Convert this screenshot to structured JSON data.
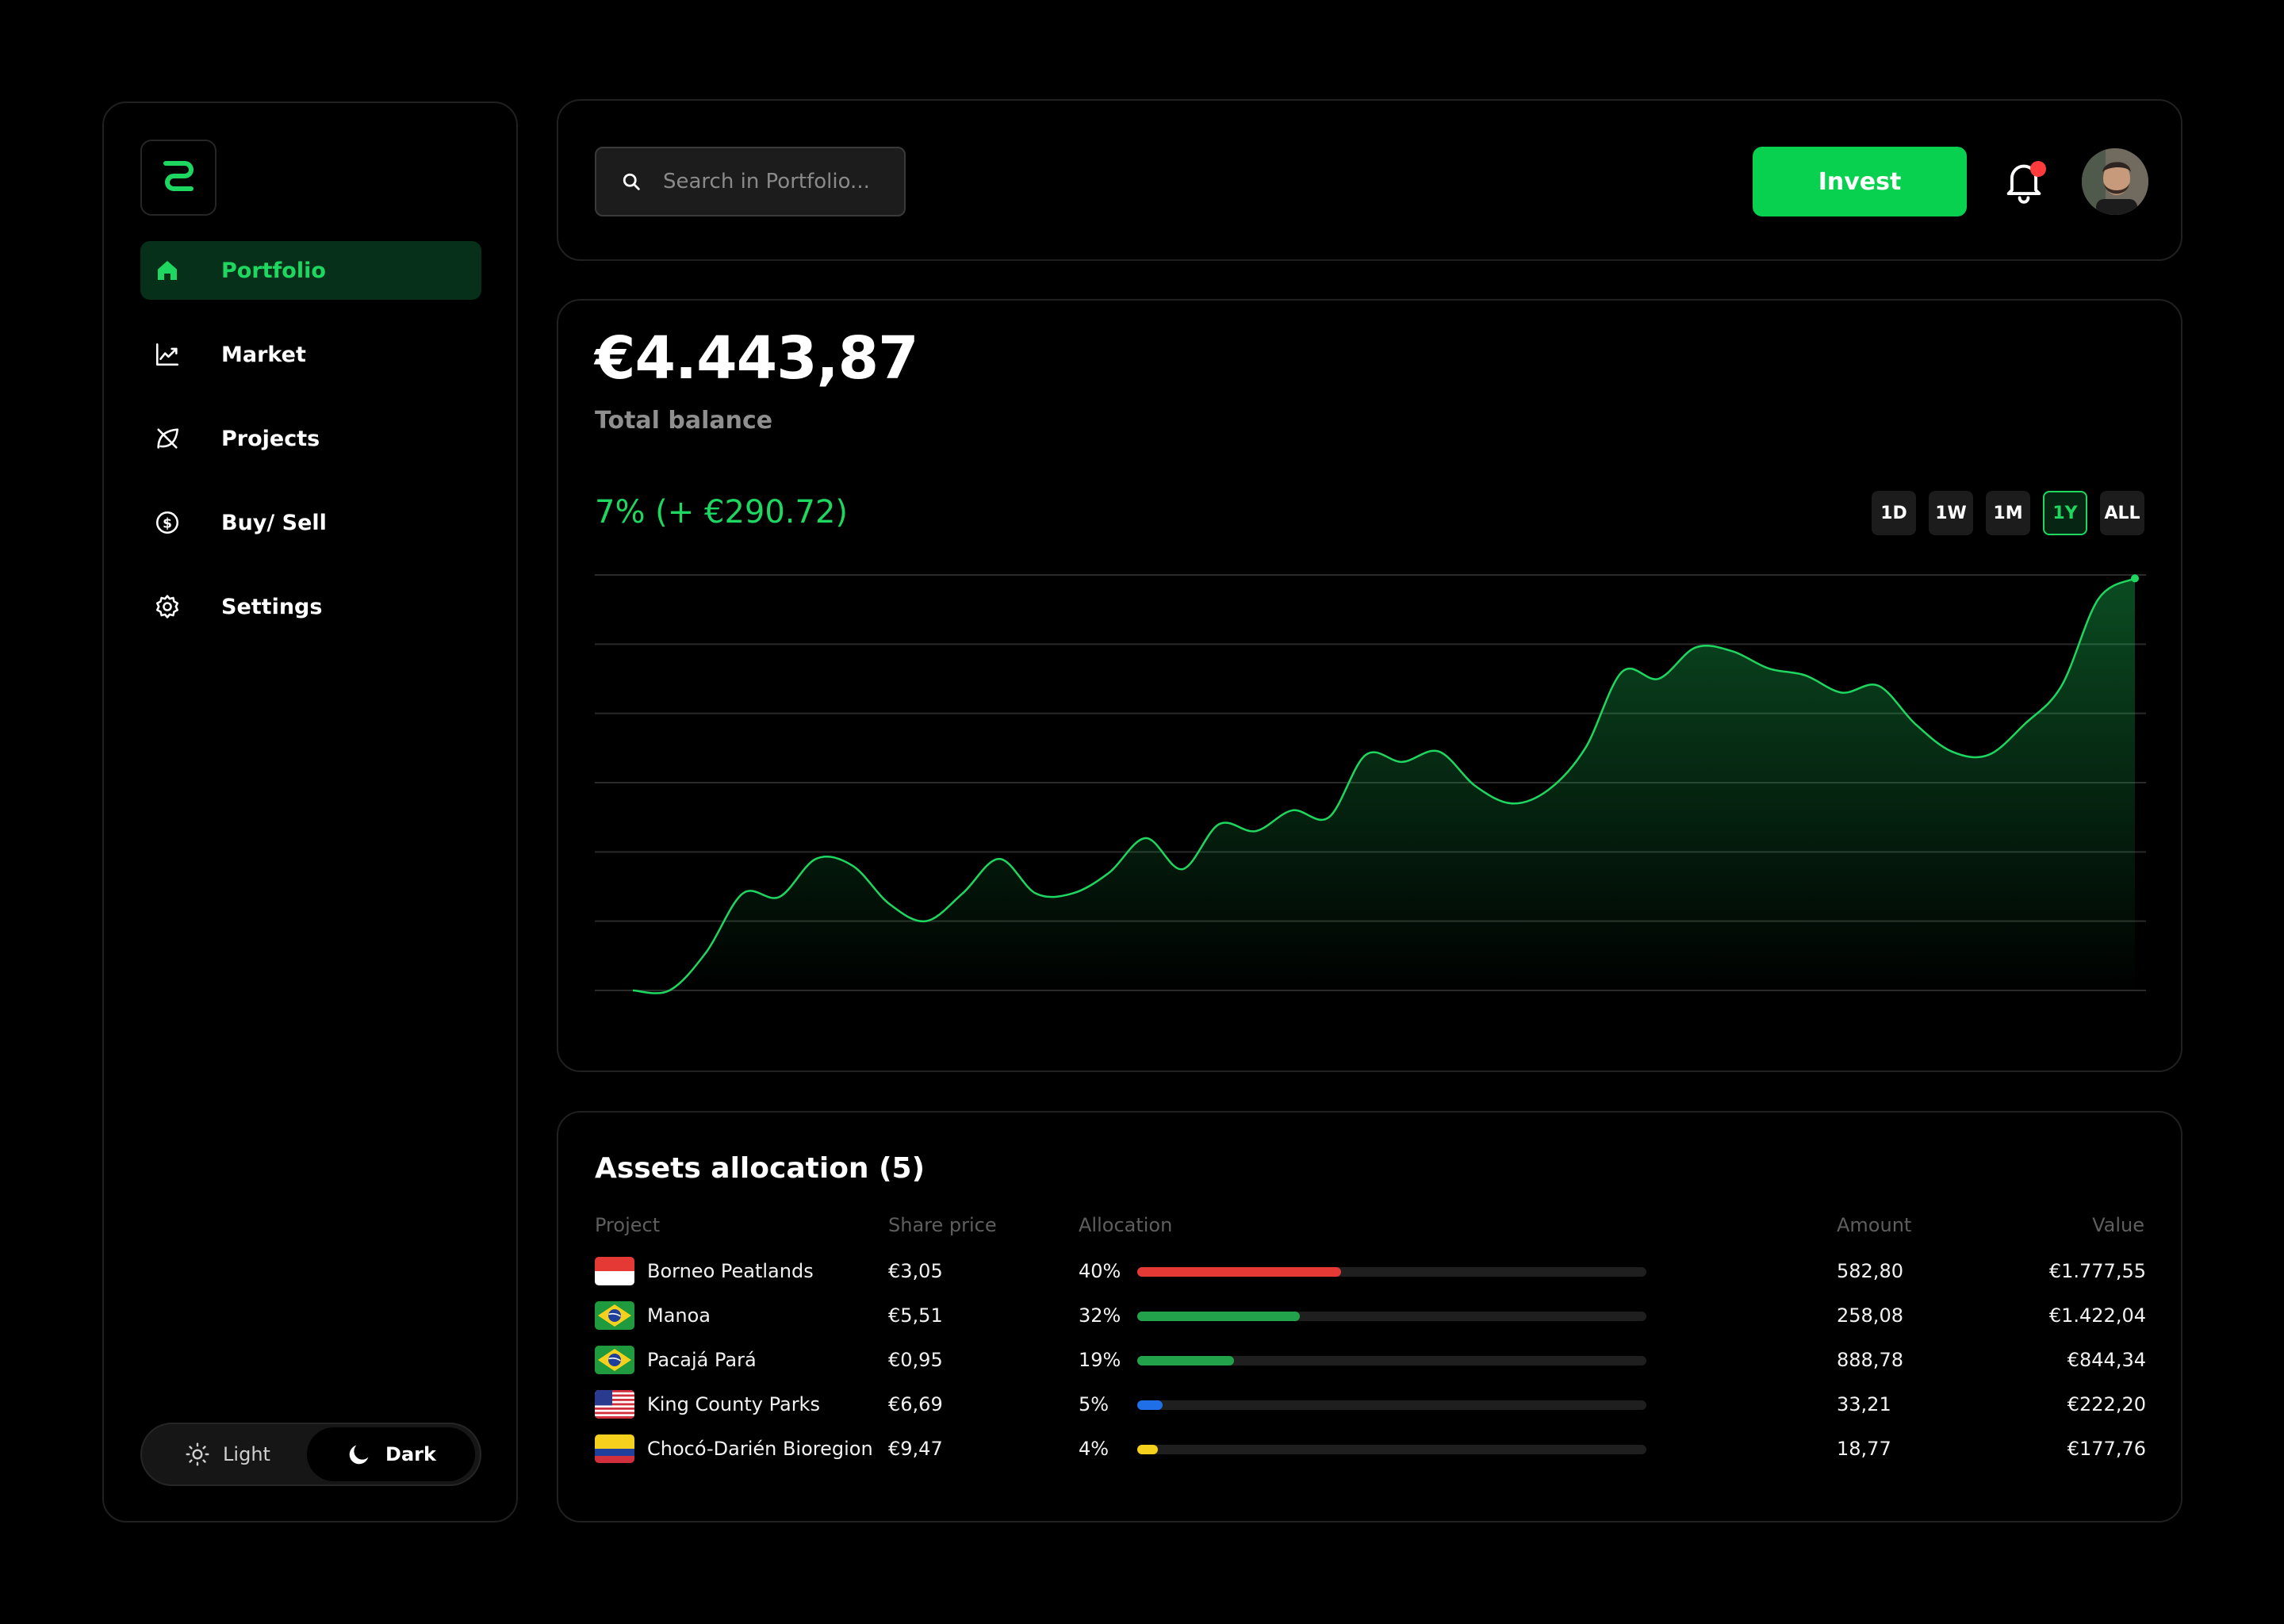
{
  "brand": {
    "logo_icon": "z-link-logo-icon",
    "accent": "#1ED760"
  },
  "sidebar": {
    "items": [
      {
        "label": "Portfolio",
        "icon": "home-icon",
        "active": true
      },
      {
        "label": "Market",
        "icon": "trend-chart-icon",
        "active": false
      },
      {
        "label": "Projects",
        "icon": "leaf-icon",
        "active": false
      },
      {
        "label": "Buy/ Sell",
        "icon": "dollar-coin-icon",
        "active": false
      },
      {
        "label": "Settings",
        "icon": "gear-icon",
        "active": false
      }
    ],
    "theme": {
      "light_label": "Light",
      "dark_label": "Dark",
      "selected": "Dark"
    }
  },
  "header": {
    "search_placeholder": "Search in Portfolio...",
    "invest_label": "Invest",
    "notification_dot": true
  },
  "balance": {
    "amount": "€4.443,87",
    "label": "Total balance",
    "change": "7% (+ €290.72)",
    "ranges": [
      "1D",
      "1W",
      "1M",
      "1Y",
      "ALL"
    ],
    "active_range": "1Y"
  },
  "chart_data": {
    "type": "area",
    "title": "",
    "xlabel": "",
    "ylabel": "",
    "grid": true,
    "ylim": [
      0,
      6
    ],
    "series": [
      {
        "color": "#1ED760",
        "values": [
          0,
          0,
          0.55,
          1.4,
          1.35,
          1.9,
          1.8,
          1.25,
          1.0,
          1.4,
          1.9,
          1.4,
          1.4,
          1.7,
          2.2,
          1.75,
          2.4,
          2.3,
          2.6,
          2.5,
          3.4,
          3.3,
          3.45,
          2.95,
          2.7,
          2.9,
          3.5,
          4.6,
          4.5,
          4.95,
          4.9,
          4.65,
          4.55,
          4.3,
          4.4,
          3.85,
          3.45,
          3.4,
          3.85,
          4.4,
          5.65,
          5.95
        ]
      }
    ]
  },
  "assets": {
    "title": "Assets allocation (5)",
    "columns": {
      "project": "Project",
      "share_price": "Share price",
      "allocation": "Allocation",
      "amount": "Amount",
      "value": "Value"
    },
    "rows": [
      {
        "flag": "indonesia-flag-icon",
        "project": "Borneo Peatlands",
        "share_price": "€3,05",
        "allocation_label": "40%",
        "allocation": 0.4,
        "bar_color": "#E53935",
        "amount": "582,80",
        "value": "€1.777,55"
      },
      {
        "flag": "brazil-flag-icon",
        "project": "Manoa",
        "share_price": "€5,51",
        "allocation_label": "32%",
        "allocation": 0.32,
        "bar_color": "#22A24A",
        "amount": "258,08",
        "value": "€1.422,04"
      },
      {
        "flag": "brazil-flag-icon",
        "project": "Pacajá Pará",
        "share_price": "€0,95",
        "allocation_label": "19%",
        "allocation": 0.19,
        "bar_color": "#22A24A",
        "amount": "888,78",
        "value": "€844,34"
      },
      {
        "flag": "usa-flag-icon",
        "project": "King County Parks",
        "share_price": "€6,69",
        "allocation_label": "5%",
        "allocation": 0.05,
        "bar_color": "#1E6FE8",
        "amount": "33,21",
        "value": "€222,20"
      },
      {
        "flag": "colombia-flag-icon",
        "project": "Chocó-Darién Bioregion",
        "share_price": "€9,47",
        "allocation_label": "4%",
        "allocation": 0.04,
        "bar_color": "#F5D11E",
        "amount": "18,77",
        "value": "€177,76"
      }
    ]
  }
}
